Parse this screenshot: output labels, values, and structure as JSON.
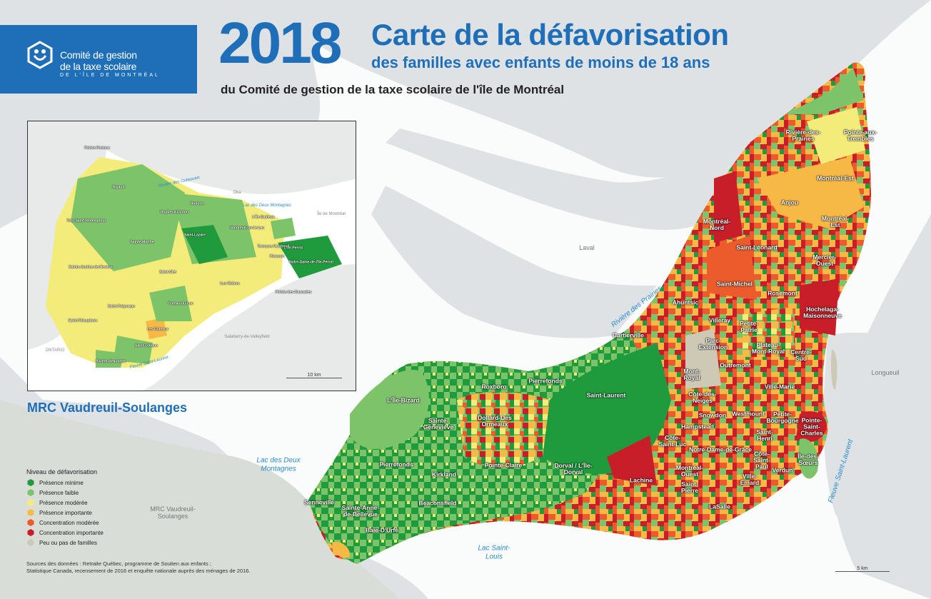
{
  "header": {
    "logo_line1": "Comité de gestion",
    "logo_line2": "de la taxe scolaire",
    "logo_line3": "DE L'ÎLE DE MONTRÉAL",
    "year": "2018",
    "title_line1": "Carte de la défavorisation",
    "title_line2": "des familles avec enfants de moins de 18 ans",
    "subtitle": "du Comité de gestion de la taxe scolaire de l'île de Montréal"
  },
  "colors": {
    "presence_minimale": "#1f9a3c",
    "presence_faible": "#7cc36a",
    "presence_moderee": "#f3ec7a",
    "presence_importante": "#f7b946",
    "concentration_moderee": "#ec5b2c",
    "concentration_importante": "#c81e2a",
    "peu_ou_pas": "#cdc9b5",
    "water": "#ffffff",
    "land": "#dfe2e4",
    "brand_blue": "#1f6fb8"
  },
  "legend": {
    "title": "Niveau de défavorisation",
    "items": [
      {
        "label": "Présence minime",
        "color": "#1f9a3c"
      },
      {
        "label": "Présence faible",
        "color": "#7cc36a"
      },
      {
        "label": "Présence modérée",
        "color": "#f3ec7a"
      },
      {
        "label": "Présence importante",
        "color": "#f7b946"
      },
      {
        "label": "Concentration modérée",
        "color": "#ec5b2c"
      },
      {
        "label": "Concentration importante",
        "color": "#c81e2a"
      },
      {
        "label": "Peu ou pas de familles",
        "color": "#cdc9b5"
      }
    ]
  },
  "inset": {
    "title": "MRC Vaudreuil-Soulanges",
    "scale": "10 km",
    "labels": [
      "Pointe-Fortune",
      "Rigaud",
      "Très-Saint-Rédempteur",
      "Sainte-Marthe",
      "Vaudreuil-Dorion",
      "Hudson",
      "Saint-Lazare",
      "L'Île-Cadieux",
      "Vaudreuil-sur-le-Lac",
      "L'Île-Perrot",
      "Notre-Dame-de-l'Île-Perrot",
      "Terrasse-Vaudreuil",
      "Pincourt",
      "Sainte-Justine-de-Newton",
      "Saint-Clet",
      "Les Cèdres",
      "Saint-Polycarpe",
      "Coteau-du-Lac",
      "Pointe-des-Cascades",
      "Saint-Télesphore",
      "Les Coteaux",
      "Saint-Zotique",
      "Rivière-Beaudette"
    ],
    "geo_labels": [
      "Oka",
      "Île de Montréal",
      "Salaberry-de-Valleyfield",
      "ONTARIO"
    ],
    "water_labels": [
      "Rivière des Outaouais",
      "Lac des Deux Montagnes",
      "Fleuve Saint-Laurent"
    ]
  },
  "main_map": {
    "scale": "5 km",
    "labels": [
      "Rivière-des-Prairies",
      "Pointe-aux-Trembles",
      "Montréal-Est",
      "Anjou",
      "Montréal-Nord",
      "Montréal-Est",
      "Saint-Léonard",
      "Mercier-Ouest",
      "Saint-Michel",
      "Rosemont",
      "Ahuntsic",
      "Villeray",
      "Hochelaga-Maisonneuve",
      "Cartierville",
      "Petite-Patrie",
      "Parc-Extension",
      "Plateau-Mont-Royal",
      "Centre-Sud",
      "Mont-Royal",
      "Outremont",
      "L'Île-Bizard",
      "Roxboro",
      "Pierrefonds",
      "Saint-Laurent",
      "Côte-des-Neiges",
      "Ville-Marie",
      "Sainte-Geneviève",
      "Dollard-Des Ormeaux",
      "Snowdon",
      "Westmount",
      "Petite-Bourgogne",
      "Pointe-Saint-Charles",
      "Hampstead",
      "Saint-Henri",
      "Côte-Saint-Luc",
      "Île-des-Sœurs",
      "Pierrefonds",
      "Kirkland",
      "Pointe-Claire",
      "Dorval / L'Île-Dorval",
      "Notre-Dame-de-Grâce",
      "Côte-Saint-Paul",
      "Verdun",
      "Montréal-Ouest",
      "Ville-Émard",
      "Lachine",
      "Saint-Pierre",
      "Senneville",
      "Sainte-Anne-de-Bellevue",
      "Beaconsfield",
      "LaSalle",
      "Baie-D'Urfé"
    ],
    "geo_labels": [
      "Laval",
      "Longueuil",
      "MRC Vaudreuil-Soulanges"
    ],
    "water_labels": [
      "Rivière des Prairies",
      "Lac des Deux Montagnes",
      "Lac Saint-Louis",
      "Fleuve Saint-Laurent"
    ]
  },
  "sources": {
    "line1": "Sources des données : Retraite Québec, programme de Soutien aux enfants ;",
    "line2": "Statistique Canada, recensement de 2016 et enquête nationale auprès des ménages de 2016."
  }
}
